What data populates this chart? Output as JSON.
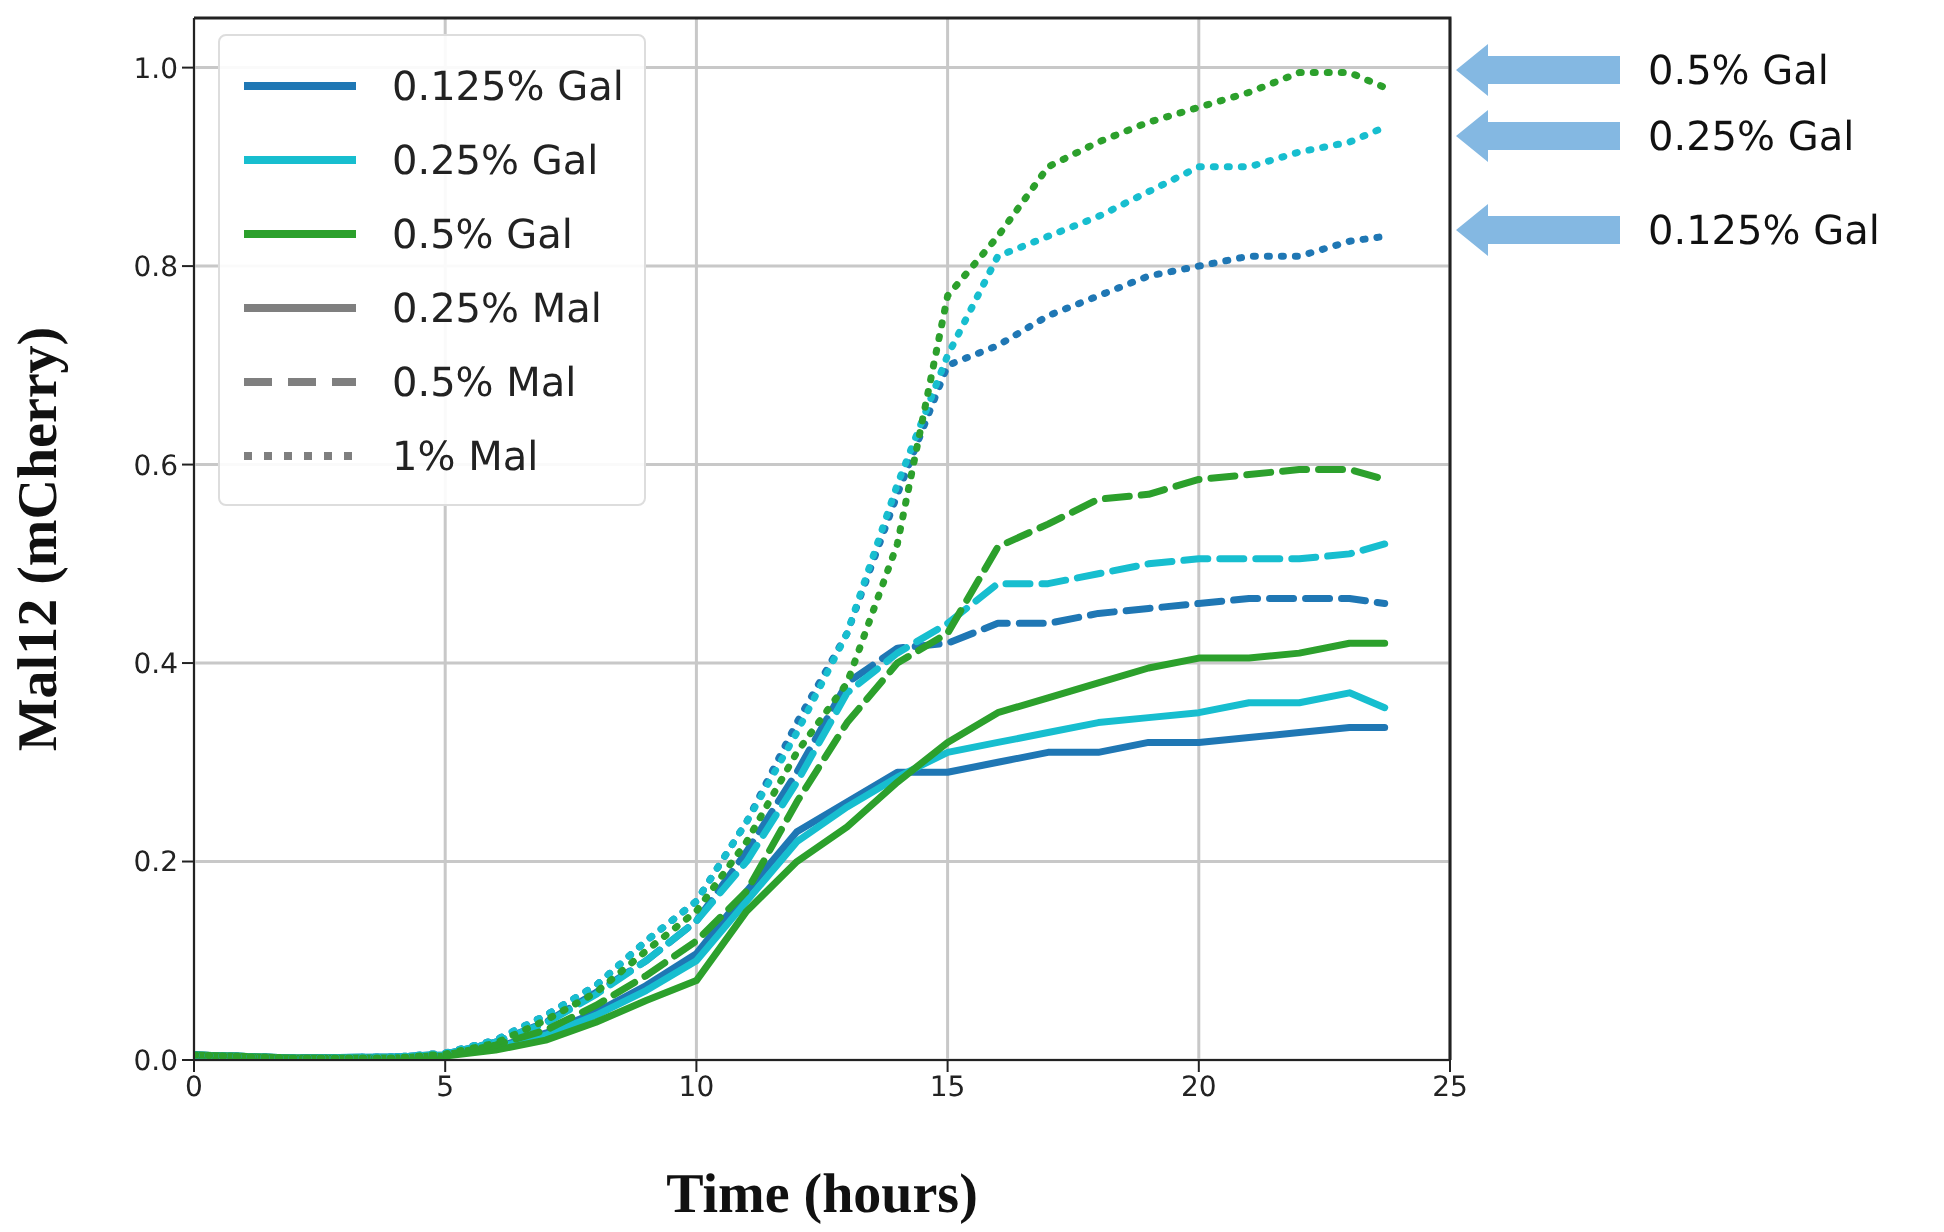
{
  "chart_data": {
    "type": "line",
    "xlabel": "Time (hours)",
    "ylabel": "Mal12 (mCherry)",
    "x": [
      0,
      2,
      4,
      5,
      6,
      7,
      8,
      9,
      10,
      11,
      12,
      13,
      14,
      15,
      16,
      17,
      18,
      19,
      20,
      21,
      22,
      23,
      23.7
    ],
    "series": [
      {
        "name": "0.125% Gal",
        "color": "#1f77b4",
        "line_style": "solid",
        "values": [
          0.005,
          0.002,
          0.003,
          0.005,
          0.013,
          0.027,
          0.048,
          0.075,
          0.107,
          0.17,
          0.23,
          0.26,
          0.29,
          0.29,
          0.3,
          0.31,
          0.31,
          0.32,
          0.32,
          0.325,
          0.33,
          0.335,
          0.335
        ]
      },
      {
        "name": "0.25% Gal",
        "color": "#17becf",
        "line_style": "solid",
        "values": [
          0.005,
          0.002,
          0.003,
          0.005,
          0.012,
          0.025,
          0.045,
          0.07,
          0.1,
          0.16,
          0.22,
          0.255,
          0.285,
          0.31,
          0.32,
          0.33,
          0.34,
          0.345,
          0.35,
          0.36,
          0.36,
          0.37,
          0.355
        ]
      },
      {
        "name": "0.5% Gal",
        "color": "#2ca02c",
        "line_style": "solid",
        "values": [
          0.005,
          0.002,
          0.002,
          0.004,
          0.01,
          0.02,
          0.038,
          0.06,
          0.08,
          0.15,
          0.2,
          0.235,
          0.28,
          0.32,
          0.35,
          0.365,
          0.38,
          0.395,
          0.405,
          0.405,
          0.41,
          0.42,
          0.42
        ]
      },
      {
        "color": "#1f77b4",
        "line_style": "dashed",
        "values": [
          0.005,
          0.002,
          0.003,
          0.006,
          0.018,
          0.038,
          0.068,
          0.1,
          0.14,
          0.21,
          0.29,
          0.38,
          0.415,
          0.42,
          0.44,
          0.44,
          0.45,
          0.455,
          0.46,
          0.465,
          0.465,
          0.465,
          0.46
        ]
      },
      {
        "color": "#17becf",
        "line_style": "dashed",
        "values": [
          0.005,
          0.002,
          0.003,
          0.006,
          0.018,
          0.037,
          0.066,
          0.1,
          0.14,
          0.2,
          0.28,
          0.37,
          0.41,
          0.44,
          0.48,
          0.48,
          0.49,
          0.5,
          0.505,
          0.505,
          0.505,
          0.51,
          0.52
        ]
      },
      {
        "color": "#2ca02c",
        "line_style": "dashed",
        "values": [
          0.005,
          0.002,
          0.002,
          0.005,
          0.015,
          0.03,
          0.055,
          0.085,
          0.12,
          0.17,
          0.26,
          0.34,
          0.4,
          0.43,
          0.517,
          0.54,
          0.565,
          0.57,
          0.585,
          0.59,
          0.595,
          0.595,
          0.585
        ]
      },
      {
        "color": "#1f77b4",
        "line_style": "dotted",
        "values": [
          0.005,
          0.002,
          0.003,
          0.007,
          0.02,
          0.045,
          0.075,
          0.12,
          0.16,
          0.24,
          0.34,
          0.43,
          0.57,
          0.7,
          0.72,
          0.75,
          0.77,
          0.79,
          0.8,
          0.81,
          0.81,
          0.825,
          0.83
        ]
      },
      {
        "color": "#17becf",
        "line_style": "dotted",
        "values": [
          0.005,
          0.002,
          0.003,
          0.007,
          0.02,
          0.045,
          0.075,
          0.12,
          0.16,
          0.24,
          0.33,
          0.43,
          0.58,
          0.71,
          0.81,
          0.83,
          0.85,
          0.875,
          0.9,
          0.9,
          0.915,
          0.925,
          0.94
        ]
      },
      {
        "color": "#2ca02c",
        "line_style": "dotted",
        "values": [
          0.005,
          0.002,
          0.002,
          0.006,
          0.017,
          0.04,
          0.068,
          0.11,
          0.15,
          0.22,
          0.31,
          0.38,
          0.52,
          0.77,
          0.83,
          0.9,
          0.925,
          0.945,
          0.96,
          0.975,
          0.995,
          0.995,
          0.98
        ]
      },
      {
        "name": "0.25% Mal",
        "color": "#7f7f7f",
        "line_style": "solid",
        "values": [
          null,
          null,
          null,
          null,
          null,
          null,
          null,
          null,
          null,
          null,
          null,
          null,
          null,
          null,
          null,
          null,
          null,
          null,
          null,
          null,
          null,
          null,
          null
        ]
      },
      {
        "name": "0.5% Mal",
        "color": "#7f7f7f",
        "line_style": "dashed",
        "values": [
          null,
          null,
          null,
          null,
          null,
          null,
          null,
          null,
          null,
          null,
          null,
          null,
          null,
          null,
          null,
          null,
          null,
          null,
          null,
          null,
          null,
          null,
          null
        ]
      },
      {
        "name": "1% Mal",
        "color": "#7f7f7f",
        "line_style": "dotted",
        "values": [
          null,
          null,
          null,
          null,
          null,
          null,
          null,
          null,
          null,
          null,
          null,
          null,
          null,
          null,
          null,
          null,
          null,
          null,
          null,
          null,
          null,
          null,
          null
        ]
      }
    ],
    "xlim": [
      0,
      25
    ],
    "xticks": [
      0,
      5,
      10,
      15,
      20,
      25
    ],
    "ylim": [
      0,
      1.05
    ],
    "yticks": [
      {
        "value": 0,
        "label": "0.0"
      },
      {
        "value": 0.2,
        "label": "0.2"
      },
      {
        "value": 0.4,
        "label": "0.4"
      },
      {
        "value": 0.6,
        "label": "0.6"
      },
      {
        "value": 0.8,
        "label": "0.8"
      },
      {
        "value": 1,
        "label": "1.0"
      }
    ],
    "grid": true,
    "legend": "top left",
    "annotations": [
      "0.5% Gal",
      "0.25% Gal",
      "0.125% Gal"
    ]
  }
}
